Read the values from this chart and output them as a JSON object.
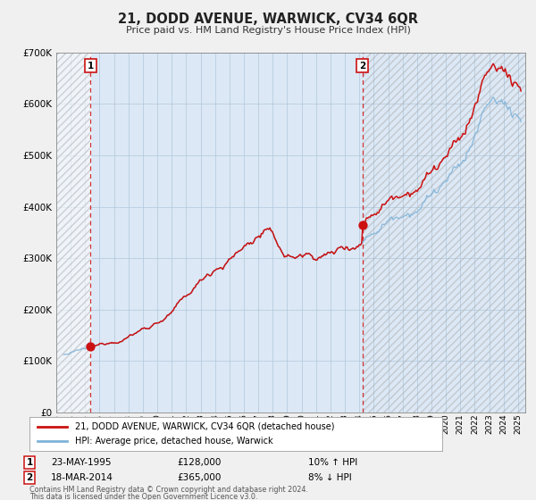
{
  "title": "21, DODD AVENUE, WARWICK, CV34 6QR",
  "subtitle": "Price paid vs. HM Land Registry's House Price Index (HPI)",
  "bg_color": "#f0f0f0",
  "plot_bg_color": "#dce8f5",
  "hatch_color": "#c8d8e8",
  "grid_color": "#b0c8dc",
  "hpi_color": "#7fb3d9",
  "price_color": "#cc1111",
  "marker_color": "#cc1111",
  "dashed_line_color": "#cc1111",
  "ylim": [
    0,
    700000
  ],
  "yticks": [
    0,
    100000,
    200000,
    300000,
    400000,
    500000,
    600000,
    700000
  ],
  "ytick_labels": [
    "£0",
    "£100K",
    "£200K",
    "£300K",
    "£400K",
    "£500K",
    "£600K",
    "£700K"
  ],
  "xlim_start": 1993.0,
  "xlim_end": 2025.5,
  "sale1_x": 1995.38,
  "sale1_y": 128000,
  "sale2_x": 2014.21,
  "sale2_y": 365000,
  "legend1": "21, DODD AVENUE, WARWICK, CV34 6QR (detached house)",
  "legend2": "HPI: Average price, detached house, Warwick",
  "annot1_date": "23-MAY-1995",
  "annot1_price": "£128,000",
  "annot1_hpi": "10% ↑ HPI",
  "annot2_date": "18-MAR-2014",
  "annot2_price": "£365,000",
  "annot2_hpi": "8% ↓ HPI",
  "footer1": "Contains HM Land Registry data © Crown copyright and database right 2024.",
  "footer2": "This data is licensed under the Open Government Licence v3.0."
}
